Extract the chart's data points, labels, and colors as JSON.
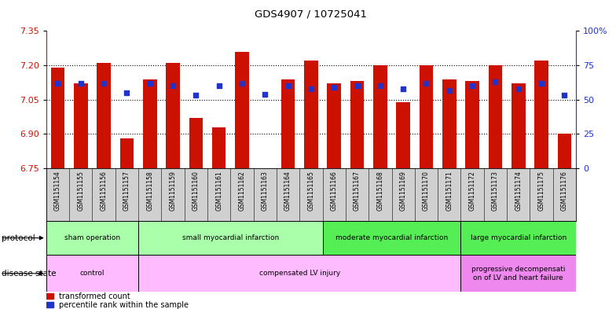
{
  "title": "GDS4907 / 10725041",
  "samples": [
    "GSM1151154",
    "GSM1151155",
    "GSM1151156",
    "GSM1151157",
    "GSM1151158",
    "GSM1151159",
    "GSM1151160",
    "GSM1151161",
    "GSM1151162",
    "GSM1151163",
    "GSM1151164",
    "GSM1151165",
    "GSM1151166",
    "GSM1151167",
    "GSM1151168",
    "GSM1151169",
    "GSM1151170",
    "GSM1151171",
    "GSM1151172",
    "GSM1151173",
    "GSM1151174",
    "GSM1151175",
    "GSM1151176"
  ],
  "transformed_count": [
    7.19,
    7.12,
    7.21,
    6.88,
    7.14,
    7.21,
    6.97,
    6.93,
    7.26,
    6.75,
    7.14,
    7.22,
    7.12,
    7.13,
    7.2,
    7.04,
    7.2,
    7.14,
    7.13,
    7.2,
    7.12,
    7.22,
    6.9
  ],
  "percentile_rank": [
    62,
    62,
    62,
    55,
    62,
    60,
    53,
    60,
    62,
    54,
    60,
    58,
    59,
    60,
    60,
    58,
    62,
    57,
    60,
    63,
    58,
    62,
    53
  ],
  "ylim_left": [
    6.75,
    7.35
  ],
  "ylim_right": [
    0,
    100
  ],
  "yticks_left": [
    6.75,
    6.9,
    7.05,
    7.2,
    7.35
  ],
  "yticks_right": [
    0,
    25,
    50,
    75,
    100
  ],
  "ytick_labels_right": [
    "0",
    "25",
    "50",
    "75",
    "100%"
  ],
  "bar_color": "#cc1100",
  "marker_color": "#2233cc",
  "protocol_groups": [
    {
      "label": "sham operation",
      "start": 0,
      "end": 4,
      "color": "#aaffaa"
    },
    {
      "label": "small myocardial infarction",
      "start": 4,
      "end": 12,
      "color": "#aaffaa"
    },
    {
      "label": "moderate myocardial infarction",
      "start": 12,
      "end": 18,
      "color": "#55ee55"
    },
    {
      "label": "large myocardial infarction",
      "start": 18,
      "end": 23,
      "color": "#55ee55"
    }
  ],
  "disease_groups": [
    {
      "label": "control",
      "start": 0,
      "end": 4,
      "color": "#ffbbff"
    },
    {
      "label": "compensated LV injury",
      "start": 4,
      "end": 18,
      "color": "#ffbbff"
    },
    {
      "label": "progressive decompensati\non of LV and heart failure",
      "start": 18,
      "end": 23,
      "color": "#ee88ee"
    }
  ],
  "group_borders": [
    4,
    12,
    18
  ],
  "xtick_bg": "#d0d0d0"
}
